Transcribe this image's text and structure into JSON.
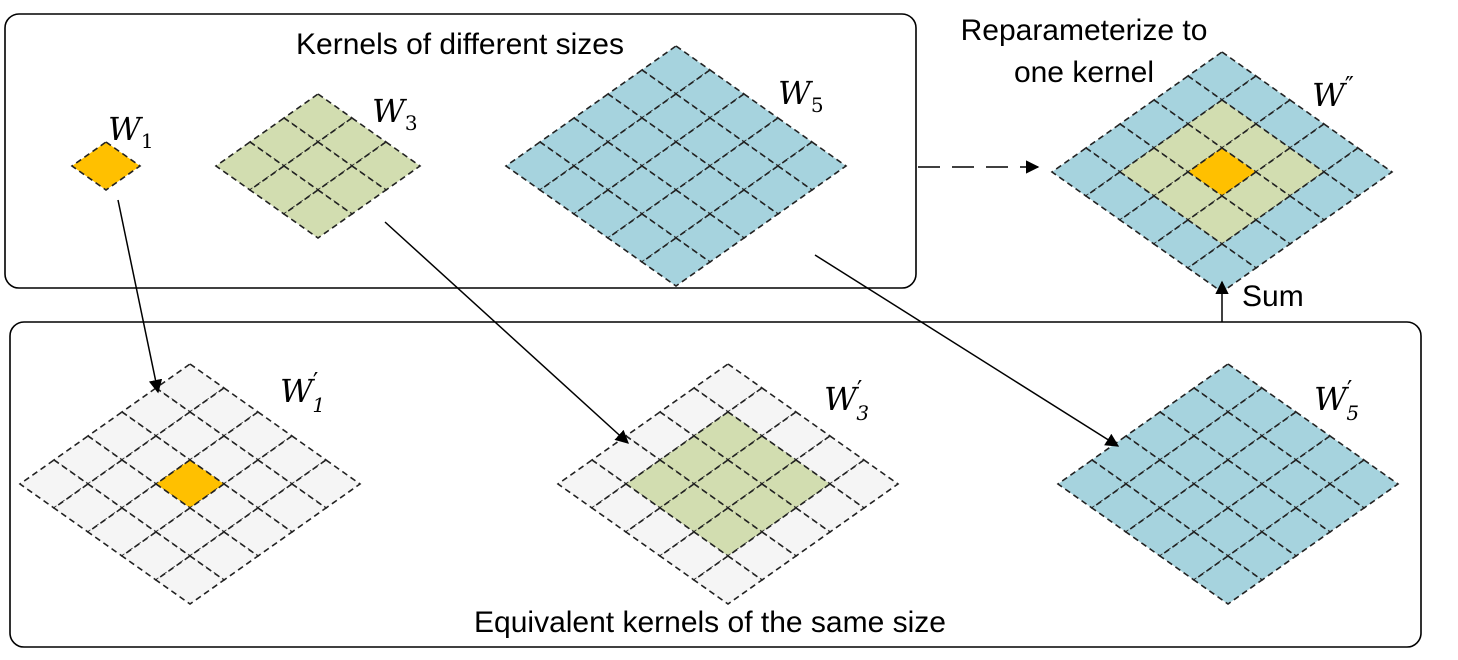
{
  "colors": {
    "orange": "#FFC000",
    "green": "#D2DDB0",
    "blue": "#A6D3DE",
    "empty": "#F5F5F5"
  },
  "texts": {
    "top_box_title": "Kernels of different sizes",
    "bottom_box_title": "Equivalent kernels of the same size",
    "reparam_line1": "Reparameterize to",
    "reparam_line2": "one kernel",
    "sum": "Sum"
  },
  "kernels": [
    {
      "id": "w1",
      "symbol": "W",
      "sub": "1",
      "prime": "",
      "size": 1,
      "fill": [
        [
          "orange"
        ]
      ]
    },
    {
      "id": "w3",
      "symbol": "W",
      "sub": "3",
      "prime": "",
      "size": 3,
      "fill": [
        [
          "green",
          "green",
          "green"
        ],
        [
          "green",
          "green",
          "green"
        ],
        [
          "green",
          "green",
          "green"
        ]
      ]
    },
    {
      "id": "w5",
      "symbol": "W",
      "sub": "5",
      "prime": "",
      "size": 5,
      "fill": [
        [
          "blue",
          "blue",
          "blue",
          "blue",
          "blue"
        ],
        [
          "blue",
          "blue",
          "blue",
          "blue",
          "blue"
        ],
        [
          "blue",
          "blue",
          "blue",
          "blue",
          "blue"
        ],
        [
          "blue",
          "blue",
          "blue",
          "blue",
          "blue"
        ],
        [
          "blue",
          "blue",
          "blue",
          "blue",
          "blue"
        ]
      ]
    },
    {
      "id": "w1p",
      "symbol": "W",
      "sub": "1",
      "prime": "′",
      "size": 5,
      "fill": [
        [
          "empty",
          "empty",
          "empty",
          "empty",
          "empty"
        ],
        [
          "empty",
          "empty",
          "empty",
          "empty",
          "empty"
        ],
        [
          "empty",
          "empty",
          "orange",
          "empty",
          "empty"
        ],
        [
          "empty",
          "empty",
          "empty",
          "empty",
          "empty"
        ],
        [
          "empty",
          "empty",
          "empty",
          "empty",
          "empty"
        ]
      ]
    },
    {
      "id": "w3p",
      "symbol": "W",
      "sub": "3",
      "prime": "′",
      "size": 5,
      "fill": [
        [
          "empty",
          "empty",
          "empty",
          "empty",
          "empty"
        ],
        [
          "empty",
          "green",
          "green",
          "green",
          "empty"
        ],
        [
          "empty",
          "green",
          "green",
          "green",
          "empty"
        ],
        [
          "empty",
          "green",
          "green",
          "green",
          "empty"
        ],
        [
          "empty",
          "empty",
          "empty",
          "empty",
          "empty"
        ]
      ]
    },
    {
      "id": "w5p",
      "symbol": "W",
      "sub": "5",
      "prime": "′",
      "size": 5,
      "fill": [
        [
          "blue",
          "blue",
          "blue",
          "blue",
          "blue"
        ],
        [
          "blue",
          "blue",
          "blue",
          "blue",
          "blue"
        ],
        [
          "blue",
          "blue",
          "blue",
          "blue",
          "blue"
        ],
        [
          "blue",
          "blue",
          "blue",
          "blue",
          "blue"
        ],
        [
          "blue",
          "blue",
          "blue",
          "blue",
          "blue"
        ]
      ]
    },
    {
      "id": "wpp",
      "symbol": "W",
      "sub": "",
      "prime": "″",
      "size": 5,
      "fill": [
        [
          "blue",
          "blue",
          "blue",
          "blue",
          "blue"
        ],
        [
          "blue",
          "green",
          "green",
          "green",
          "blue"
        ],
        [
          "blue",
          "green",
          "orange",
          "green",
          "blue"
        ],
        [
          "blue",
          "green",
          "green",
          "green",
          "blue"
        ],
        [
          "blue",
          "blue",
          "blue",
          "blue",
          "blue"
        ]
      ]
    }
  ]
}
